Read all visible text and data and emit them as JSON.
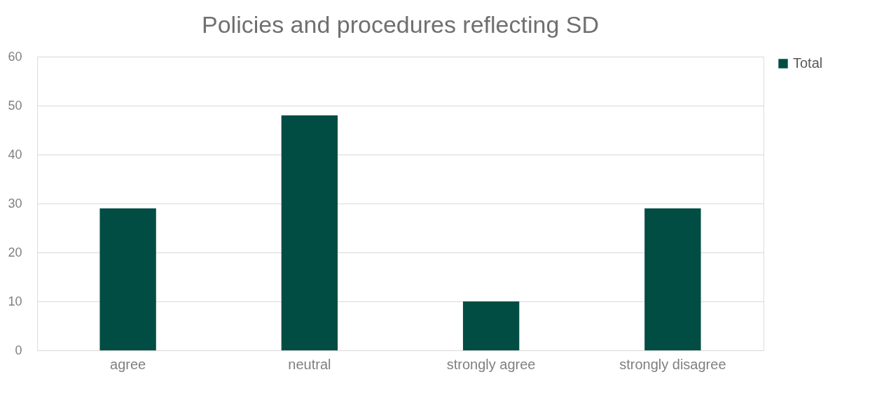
{
  "chart_data": {
    "type": "bar",
    "title": "Policies and procedures reflecting SD",
    "categories": [
      "agree",
      "neutral",
      "strongly agree",
      "strongly disagree"
    ],
    "series": [
      {
        "name": "Total",
        "color": "#014d44",
        "values": [
          29,
          48,
          10,
          29
        ]
      }
    ],
    "ylim": [
      0,
      60
    ],
    "yticks": [
      0,
      10,
      20,
      30,
      40,
      50,
      60
    ],
    "grid": "y",
    "legend": "right"
  }
}
